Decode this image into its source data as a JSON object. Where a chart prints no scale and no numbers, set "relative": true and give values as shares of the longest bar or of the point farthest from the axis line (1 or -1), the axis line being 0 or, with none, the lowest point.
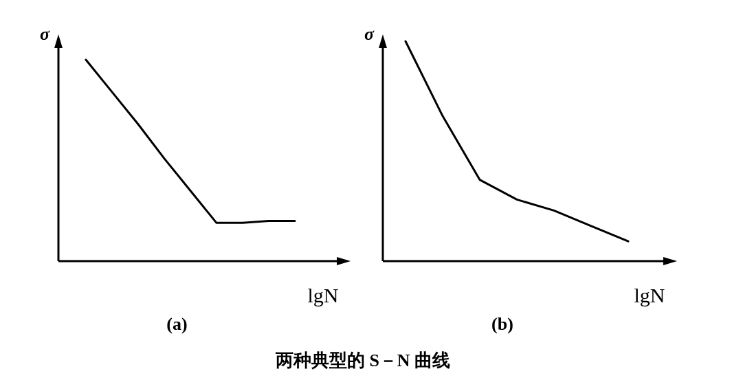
{
  "chart_data": [
    {
      "type": "line",
      "title": "(a)",
      "xlabel": "lgN",
      "ylabel": "σ",
      "relative": true,
      "categories": [
        null,
        null,
        null,
        null,
        null,
        null,
        null,
        null,
        null
      ],
      "series": [
        {
          "color": "#000000",
          "values": [
            1,
            0.84,
            0.68,
            0.51,
            0.35,
            0.19,
            0.19,
            0.2,
            0.2
          ]
        }
      ],
      "annotations": [
        "两种典型的 S－N 曲线"
      ]
    },
    {
      "type": "line",
      "title": "(b)",
      "xlabel": "lgN",
      "ylabel": "σ",
      "relative": true,
      "categories": [
        null,
        null,
        null,
        null,
        null,
        null,
        null
      ],
      "series": [
        {
          "color": "#000000",
          "values": [
            1,
            0.66,
            0.37,
            0.28,
            0.23,
            0.16,
            0.09
          ]
        }
      ]
    }
  ]
}
